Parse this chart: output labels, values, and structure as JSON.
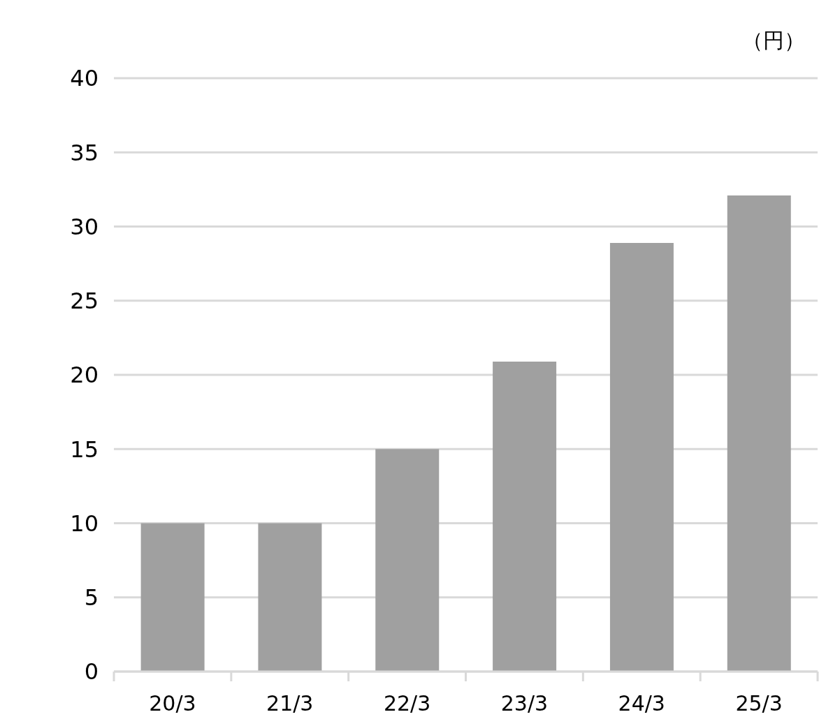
{
  "chart_data": {
    "type": "bar",
    "ylabel": "（円）",
    "categories": [
      "20/3",
      "21/3",
      "22/3",
      "23/3",
      "24/3",
      "25/3"
    ],
    "values": [
      10,
      10,
      15,
      20.9,
      28.9,
      32.1
    ],
    "color": "#a0a0a0",
    "ylim": [
      0,
      40
    ],
    "yticks": [
      0,
      5,
      10,
      15,
      20,
      25,
      30,
      35,
      40
    ],
    "grid": "y"
  }
}
